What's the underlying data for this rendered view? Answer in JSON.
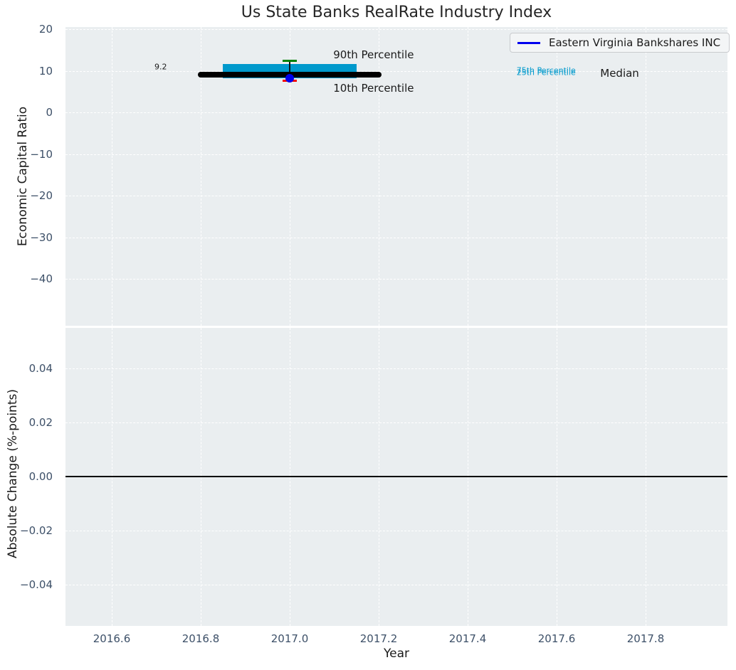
{
  "title": "Us State Banks RealRate Industry Index",
  "legend": {
    "label": "Eastern Virginia Bankshares INC"
  },
  "colors": {
    "title": "#262626",
    "text": "#1a1a1a",
    "tick_label": "#3d5068",
    "panel_bg": "#eaeef0",
    "grid": "#ffffff",
    "box": "#0099cc",
    "median_line": "#000000",
    "whisker": "#111111",
    "cap_top": "#008000",
    "cap_bottom": "#f50000",
    "company": "#0000ee",
    "zero_line": "#000000",
    "legend_bg": "#f3f5f6",
    "legend_border": "#c9cbce"
  },
  "chart_data": [
    {
      "type": "boxplot+scatter",
      "ylabel": "Economic Capital Ratio",
      "xlabel": "Year",
      "grid": true,
      "xlim": [
        2016.496,
        2017.984
      ],
      "ylim": [
        -51.27,
        20.58
      ],
      "xticks": [
        2016.6,
        2016.8,
        2017.0,
        2017.2,
        2017.4,
        2017.6,
        2017.8
      ],
      "xtick_labels": [
        "2016.6",
        "2016.8",
        "2017.0",
        "2017.2",
        "2017.4",
        "2017.6",
        "2017.8"
      ],
      "show_xtick_labels": false,
      "yticks": [
        20,
        10,
        0,
        -10,
        -20,
        -30,
        -40
      ],
      "ytick_labels": [
        "20",
        "10",
        "0",
        "−10",
        "−20",
        "−30",
        "−40"
      ],
      "industry_box": {
        "year": 2017.0,
        "p10": 7.6,
        "p25": 8.3,
        "median": 9.2,
        "p75": 11.7,
        "p90": 12.4,
        "median_label": "9.2",
        "median_line_halfwidth_years": 0.206,
        "box_halfwidth_years": 0.151,
        "cap_halfwidth_years": 0.016
      },
      "company_point": {
        "name": "Eastern Virginia Bankshares INC",
        "year": 2017.0,
        "value": 8.3
      },
      "annotations": [
        {
          "text": "9.2",
          "x": 2016.696,
          "y": 11.0,
          "color": "#1a1a1a",
          "size": "small"
        },
        {
          "text": "90th Percentile",
          "x": 2017.098,
          "y": 13.9,
          "color": "#1a1a1a",
          "size": "large"
        },
        {
          "text": "10th Percentile",
          "x": 2017.098,
          "y": 5.9,
          "color": "#1a1a1a",
          "size": "large"
        },
        {
          "text": "75th Percentile",
          "x": 2017.51,
          "y": 10.1,
          "color": "#0099cc",
          "size": "small"
        },
        {
          "text": "25th Percentile",
          "x": 2017.51,
          "y": 9.7,
          "color": "#0099cc",
          "size": "small"
        },
        {
          "text": "Median",
          "x": 2017.698,
          "y": 9.5,
          "color": "#1a1a1a",
          "size": "large"
        }
      ]
    },
    {
      "type": "line",
      "ylabel": "Absolute Change (%-points)",
      "xlabel": "Year",
      "grid": true,
      "xlim": [
        2016.496,
        2017.984
      ],
      "ylim": [
        -0.0554,
        0.0551
      ],
      "xticks": [
        2016.6,
        2016.8,
        2017.0,
        2017.2,
        2017.4,
        2017.6,
        2017.8
      ],
      "xtick_labels": [
        "2016.6",
        "2016.8",
        "2017.0",
        "2017.2",
        "2017.4",
        "2017.6",
        "2017.8"
      ],
      "show_xtick_labels": true,
      "yticks": [
        0.04,
        0.02,
        0.0,
        -0.02,
        -0.04
      ],
      "ytick_labels": [
        "0.04",
        "0.02",
        "0.00",
        "−0.02",
        "−0.04"
      ],
      "zero_line": 0.0,
      "series": []
    }
  ]
}
